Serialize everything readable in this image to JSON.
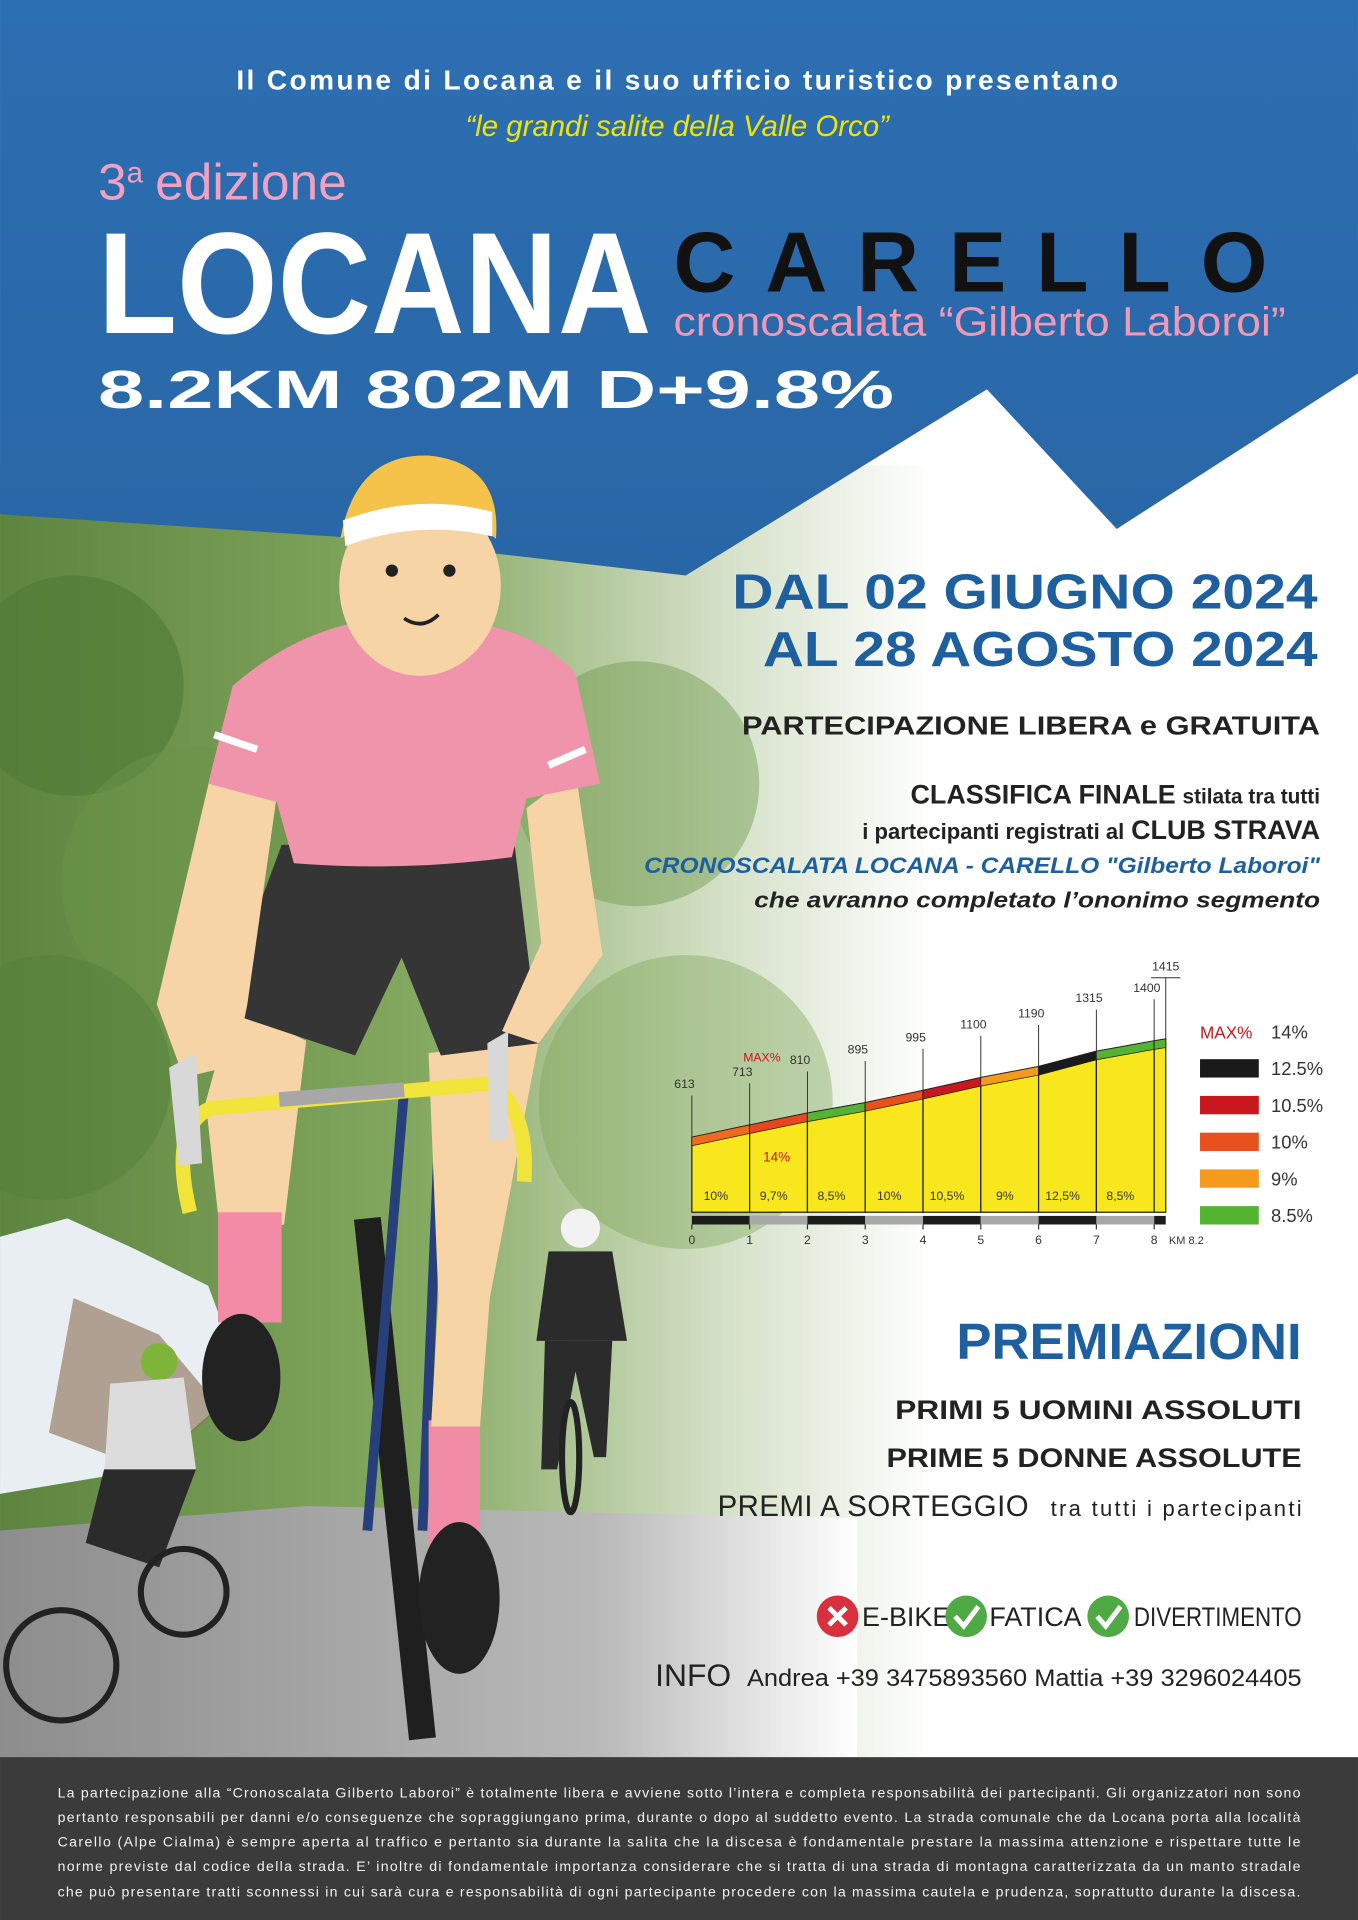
{
  "header": {
    "presenter": "Il Comune di Locana e il suo ufficio turistico presentano",
    "series_name": "“le grandi salite della Valle Orco”"
  },
  "event": {
    "edition_number": "3",
    "edition_suffix": "a",
    "edition_word": "edizione",
    "start": "LOCANA",
    "finish": "CARELLO",
    "subtitle": "cronoscalata “Gilberto Laboroi”",
    "stats": "8.2KM 802M D+9.8%"
  },
  "dates": [
    "DAL 02 GIUGNO 2024",
    "AL 28 AGOSTO 2024"
  ],
  "participation": "PARTECIPAZIONE LIBERA e GRATUITA",
  "ranking": {
    "lines": [
      [
        "CLASSIFICA FINALE",
        "stilata tra tutti"
      ],
      [
        "i partecipanti registrati al",
        "CLUB STRAVA"
      ],
      [
        "CRONOSCALATA LOCANA - CARELLO \"Gilberto Laboroi\""
      ],
      [
        "che avranno completato l’ononimo segmento"
      ]
    ]
  },
  "chart_data": {
    "type": "area",
    "x": [
      0,
      1,
      2,
      3,
      4,
      5,
      6,
      7,
      8,
      8.2
    ],
    "values": [
      613,
      713,
      810,
      895,
      995,
      1100,
      1190,
      1315,
      1400,
      1415
    ],
    "xlim": [
      0,
      8.2
    ],
    "xticks": [
      0,
      1,
      2,
      3,
      4,
      5,
      6,
      7,
      8
    ],
    "xlabel": "KM 8.2",
    "ylim": [
      0,
      1500
    ],
    "color": "#f7e71c",
    "gradients": {
      "values": [
        10,
        9.7,
        8.5,
        10,
        10.5,
        9,
        12.5,
        8.5
      ],
      "value_labels": [
        "10%",
        "9,7%",
        "8,5%",
        "10%",
        "10,5%",
        "9%",
        "12,5%",
        "8,5%"
      ],
      "colors": [
        "#ee6a1c",
        "#e8461e",
        "#55b332",
        "#e8501e",
        "#c8171e",
        "#f59a1a",
        "#1a1a1a",
        "#55b332"
      ]
    },
    "max_label": "MAX%",
    "max_value": 14,
    "max_value_label": "14%",
    "legend": {
      "title": "MAX%",
      "title_value": "14%",
      "items": [
        {
          "value": 12.5,
          "label": "12.5%",
          "color": "#1a1a1a"
        },
        {
          "value": 10.5,
          "label": "10.5%",
          "color": "#c8171e"
        },
        {
          "value": 10,
          "label": "10%",
          "color": "#e8501e"
        },
        {
          "value": 9,
          "label": "9%",
          "color": "#f59a1a"
        },
        {
          "value": 8.5,
          "label": "8.5%",
          "color": "#55b332"
        }
      ]
    }
  },
  "awards": {
    "title": "PREMIAZIONI",
    "lines": [
      "PRIMI 5 UOMINI ASSOLUTI",
      "PRIME 5 DONNE ASSOLUTE"
    ],
    "draw": "PREMI A SORTEGGIO",
    "draw_note": "tra tutti i partecipanti"
  },
  "rules": [
    "E-BIKE",
    "FATICA",
    "DIVERTIMENTO"
  ],
  "info": {
    "label": "INFO",
    "contacts": "Andrea +39 3475893560 Mattia +39 3296024405"
  },
  "disclaimer": [
    "La partecipazione alla “Cronoscalata Gilberto Laboroi” è totalmente libera e avviene sotto l’intera e completa responsabilità dei partecipanti. Gli organizzatori non sono",
    "pertanto responsabili per danni e/o conseguenze che sopraggiungano prima, durante o dopo al suddetto evento. La strada comunale che da Locana porta alla località",
    "Carello (Alpe Cialma) è sempre aperta al traffico e pertanto sia durante la salita che la discesa è fondamentale prestare la massima attenzione e rispettare tutte le",
    "norme previste dal codice della strada. E’ inoltre di fondamentale importanza considerare che si tratta di una strada di montagna caratterizzata da un manto stradale",
    "che può presentare tratti sconnessi in cui sarà cura e responsabilità di ogni partecipante procedere con la massima cautela e prudenza, soprattutto durante la discesa."
  ]
}
